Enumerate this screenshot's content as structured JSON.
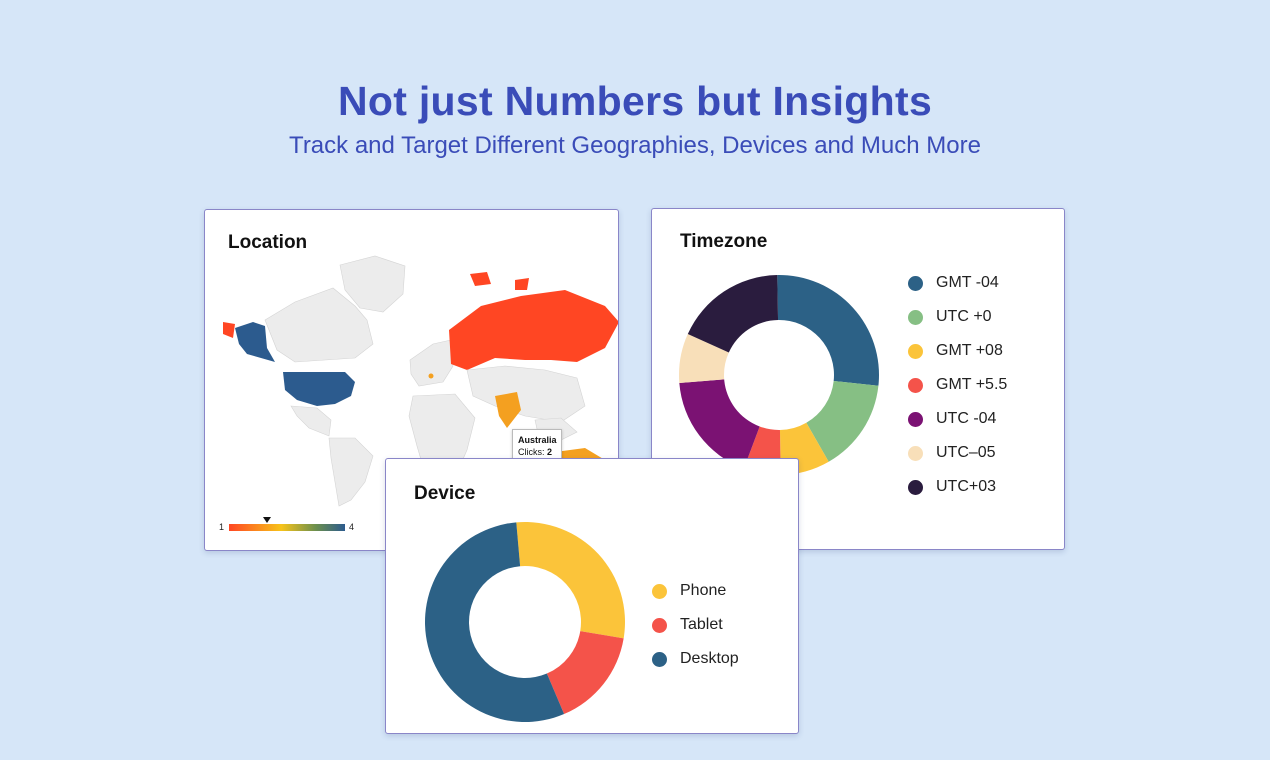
{
  "header": {
    "title": "Not just Numbers but Insights",
    "subtitle": "Track and Target Different Geographies, Devices and Much More"
  },
  "location": {
    "title": "Location",
    "tooltip": {
      "country": "Australia",
      "label": "Clicks:",
      "value": "2"
    },
    "scale": {
      "min": "1",
      "max": "4"
    },
    "colors": {
      "land": "#ececec",
      "high": "#2c5b8e",
      "low": "#ff4623",
      "mid": "#f4a020"
    }
  },
  "chart_data": [
    {
      "type": "pie",
      "subtype": "donut",
      "title": "Timezone",
      "legend_position": "right",
      "series": [
        {
          "name": "GMT -04",
          "value": 27,
          "color": "#2c6186"
        },
        {
          "name": "UTC +0",
          "value": 15,
          "color": "#86bf84"
        },
        {
          "name": "GMT +08",
          "value": 8,
          "color": "#fbc43a"
        },
        {
          "name": "GMT +5.5",
          "value": 6,
          "color": "#f4534a"
        },
        {
          "name": "UTC -04",
          "value": 18,
          "color": "#7b1273"
        },
        {
          "name": "UTC–05",
          "value": 8,
          "color": "#f8dfb9"
        },
        {
          "name": "UTC+03",
          "value": 18,
          "color": "#2a1c3e"
        }
      ]
    },
    {
      "type": "pie",
      "subtype": "donut",
      "title": "Device",
      "legend_position": "right",
      "series": [
        {
          "name": "Phone",
          "value": 29,
          "color": "#fbc43a"
        },
        {
          "name": "Tablet",
          "value": 16,
          "color": "#f4534a"
        },
        {
          "name": "Desktop",
          "value": 55,
          "color": "#2c6186"
        }
      ]
    }
  ]
}
